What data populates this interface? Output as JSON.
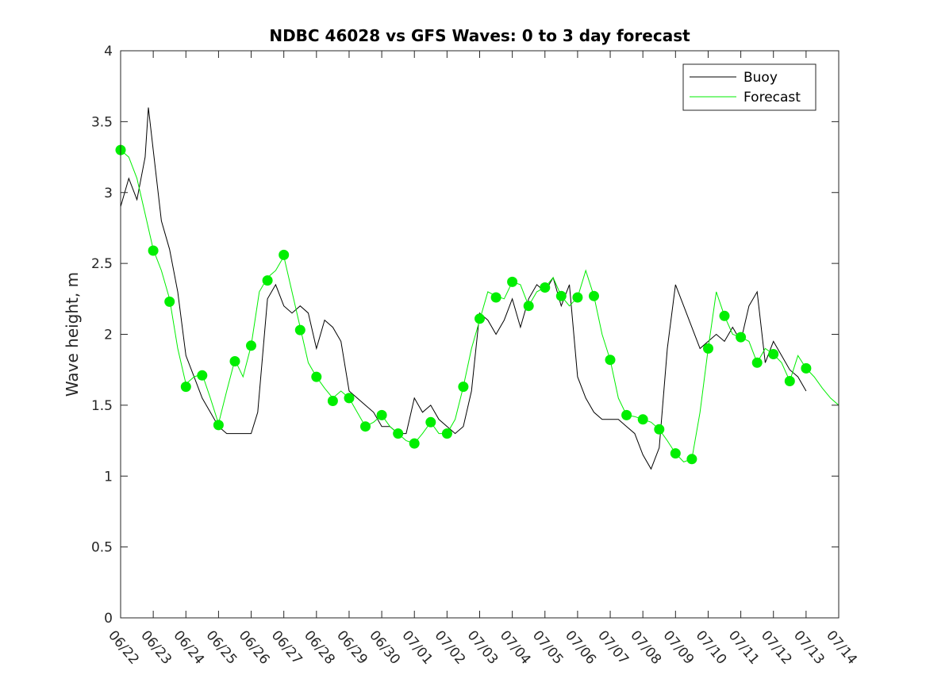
{
  "chart_data": {
    "type": "line",
    "title": "NDBC 46028 vs GFS Waves: 0 to 3 day forecast",
    "xlabel": "",
    "ylabel": "Wave height, m",
    "x_ticks": [
      "06/22",
      "06/23",
      "06/24",
      "06/25",
      "06/26",
      "06/27",
      "06/28",
      "06/29",
      "06/30",
      "07/01",
      "07/02",
      "07/03",
      "07/04",
      "07/05",
      "07/06",
      "07/07",
      "07/08",
      "07/09",
      "07/10",
      "07/11",
      "07/12",
      "07/13",
      "07/14"
    ],
    "x_range_days": [
      0,
      22
    ],
    "ylim": [
      0,
      4
    ],
    "y_ticks": [
      "0",
      "0.5",
      "1",
      "1.5",
      "2",
      "2.5",
      "3",
      "3.5",
      "4"
    ],
    "grid": false,
    "legend": {
      "position": "top-right",
      "entries": [
        "Buoy",
        "Forecast"
      ]
    },
    "colors": {
      "buoy": "#000000",
      "forecast": "#00ee00",
      "axes": "#262626"
    },
    "series": [
      {
        "name": "Buoy",
        "x_days": [
          0,
          0.25,
          0.5,
          0.75,
          0.85,
          1.0,
          1.25,
          1.5,
          1.75,
          2.0,
          2.25,
          2.5,
          2.75,
          3.0,
          3.25,
          3.5,
          3.75,
          4.0,
          4.2,
          4.5,
          4.75,
          5.0,
          5.25,
          5.5,
          5.75,
          6.0,
          6.25,
          6.5,
          6.75,
          7.0,
          7.25,
          7.5,
          7.75,
          8.0,
          8.25,
          8.5,
          8.75,
          9.0,
          9.25,
          9.5,
          9.75,
          10.0,
          10.25,
          10.5,
          10.75,
          11.0,
          11.25,
          11.5,
          11.75,
          12.0,
          12.25,
          12.5,
          12.75,
          13.0,
          13.25,
          13.5,
          13.75,
          14.0,
          14.25,
          14.5,
          14.75,
          15.0,
          15.25,
          15.5,
          15.75,
          16.0,
          16.25,
          16.5,
          16.75,
          17.0,
          17.25,
          17.5,
          17.75,
          18.0,
          18.25,
          18.5,
          18.75,
          19.0,
          19.25,
          19.5,
          19.75,
          20.0,
          20.25,
          20.5,
          20.75,
          21.0
        ],
        "values": [
          2.9,
          3.1,
          2.95,
          3.25,
          3.6,
          3.3,
          2.8,
          2.6,
          2.3,
          1.85,
          1.7,
          1.55,
          1.45,
          1.35,
          1.3,
          1.3,
          1.3,
          1.3,
          1.45,
          2.25,
          2.35,
          2.2,
          2.15,
          2.2,
          2.15,
          1.9,
          2.1,
          2.05,
          1.95,
          1.6,
          1.55,
          1.5,
          1.45,
          1.35,
          1.35,
          1.3,
          1.3,
          1.55,
          1.45,
          1.5,
          1.4,
          1.35,
          1.3,
          1.35,
          1.6,
          2.15,
          2.1,
          2.0,
          2.1,
          2.25,
          2.05,
          2.25,
          2.35,
          2.3,
          2.4,
          2.2,
          2.35,
          1.7,
          1.55,
          1.45,
          1.4,
          1.4,
          1.4,
          1.35,
          1.3,
          1.15,
          1.05,
          1.2,
          1.9,
          2.35,
          2.2,
          2.05,
          1.9,
          1.95,
          2.0,
          1.95,
          2.05,
          1.95,
          2.2,
          2.3,
          1.8,
          1.95,
          1.85,
          1.75,
          1.7,
          1.6
        ]
      },
      {
        "name": "Forecast",
        "x_days": [
          0,
          0.25,
          0.5,
          0.75,
          1.0,
          1.25,
          1.5,
          1.75,
          2.0,
          2.25,
          2.5,
          2.75,
          3.0,
          3.25,
          3.5,
          3.75,
          4.0,
          4.25,
          4.5,
          4.75,
          5.0,
          5.25,
          5.5,
          5.75,
          6.0,
          6.25,
          6.5,
          6.75,
          7.0,
          7.25,
          7.5,
          7.75,
          8.0,
          8.25,
          8.5,
          8.75,
          9.0,
          9.25,
          9.5,
          9.75,
          10.0,
          10.25,
          10.5,
          10.75,
          11.0,
          11.25,
          11.5,
          11.75,
          12.0,
          12.25,
          12.5,
          12.75,
          13.0,
          13.25,
          13.5,
          13.75,
          14.0,
          14.25,
          14.5,
          14.75,
          15.0,
          15.25,
          15.5,
          15.75,
          16.0,
          16.25,
          16.5,
          16.75,
          17.0,
          17.25,
          17.5,
          17.75,
          18.0,
          18.25,
          18.5,
          18.75,
          19.0,
          19.25,
          19.5,
          19.75,
          20.0,
          20.25,
          20.5,
          20.75,
          21.0,
          21.25,
          21.5,
          21.75,
          22.0
        ],
        "values": [
          3.3,
          3.25,
          3.1,
          2.85,
          2.6,
          2.45,
          2.25,
          1.9,
          1.65,
          1.7,
          1.72,
          1.55,
          1.37,
          1.6,
          1.82,
          1.7,
          1.92,
          2.3,
          2.4,
          2.45,
          2.55,
          2.3,
          2.05,
          1.8,
          1.7,
          1.62,
          1.55,
          1.6,
          1.55,
          1.45,
          1.35,
          1.38,
          1.43,
          1.35,
          1.3,
          1.25,
          1.23,
          1.3,
          1.38,
          1.3,
          1.3,
          1.4,
          1.63,
          1.9,
          2.1,
          2.3,
          2.27,
          2.25,
          2.37,
          2.35,
          2.2,
          2.3,
          2.33,
          2.4,
          2.27,
          2.2,
          2.26,
          2.45,
          2.27,
          2.0,
          1.82,
          1.55,
          1.43,
          1.42,
          1.4,
          1.38,
          1.33,
          1.25,
          1.16,
          1.1,
          1.12,
          1.45,
          1.9,
          2.3,
          2.13,
          2.0,
          1.98,
          1.95,
          1.8,
          1.9,
          1.86,
          1.8,
          1.67,
          1.85,
          1.76,
          1.7,
          1.62,
          1.55,
          1.5
        ]
      }
    ],
    "forecast_markers": {
      "x_days": [
        0,
        1,
        1.5,
        2,
        2.5,
        3,
        3.5,
        4,
        4.5,
        5,
        5.5,
        6,
        6.5,
        7,
        7.5,
        8,
        8.5,
        9,
        9.5,
        10,
        10.5,
        11,
        11.5,
        12,
        12.5,
        13,
        13.5,
        14,
        14.5,
        15,
        15.5,
        16,
        16.5,
        17,
        17.5,
        18,
        18.5,
        19,
        19.5,
        20,
        20.5,
        21
      ],
      "values": [
        3.3,
        2.59,
        2.23,
        1.63,
        1.71,
        1.36,
        1.81,
        1.92,
        2.38,
        2.56,
        2.03,
        1.7,
        1.53,
        1.55,
        1.35,
        1.43,
        1.3,
        1.23,
        1.38,
        1.3,
        1.63,
        2.11,
        2.26,
        2.37,
        2.2,
        2.33,
        2.27,
        2.26,
        2.27,
        1.82,
        1.43,
        1.4,
        1.33,
        1.16,
        1.12,
        1.9,
        2.13,
        1.98,
        1.8,
        1.86,
        1.67,
        1.76
      ]
    }
  }
}
